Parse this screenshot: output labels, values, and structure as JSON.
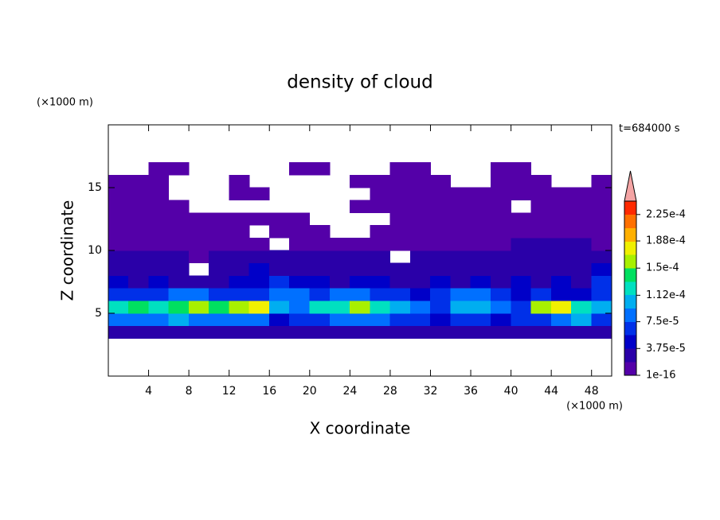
{
  "chart_data": {
    "type": "heatmap",
    "title": "density of cloud",
    "x_label": "X coordinate",
    "y_label": "Z coordinate",
    "x_unit": "(×1000 m)",
    "y_unit": "(×1000 m)",
    "annotation": "t=684000 s",
    "xlim": [
      0,
      50
    ],
    "ylim": [
      0,
      20
    ],
    "xticks": [
      4,
      8,
      12,
      16,
      20,
      24,
      28,
      32,
      36,
      40,
      44,
      48
    ],
    "yticks": [
      5,
      10,
      15
    ],
    "xbins": [
      0,
      2,
      4,
      6,
      8,
      10,
      12,
      14,
      16,
      18,
      20,
      22,
      24,
      26,
      28,
      30,
      32,
      34,
      36,
      38,
      40,
      42,
      44,
      46,
      48,
      50
    ],
    "zbins": [
      3,
      4,
      5,
      6,
      7,
      8,
      9,
      10,
      11,
      12,
      13,
      14,
      15,
      16,
      17
    ],
    "z": [
      [
        2e-05,
        3e-05,
        3e-05,
        3e-05,
        3e-05,
        3e-05,
        3e-05,
        3e-05,
        2e-05,
        2e-05,
        2e-05,
        2e-05,
        3e-05,
        3e-05,
        2e-05,
        2e-05,
        2e-05,
        3e-05,
        2e-05,
        2e-05,
        2e-05,
        3e-05,
        3e-05,
        3e-05,
        2e-05
      ],
      [
        8e-05,
        9e-05,
        9e-05,
        0.0001,
        9e-05,
        9e-05,
        8e-05,
        8e-05,
        5e-05,
        6e-05,
        7e-05,
        8e-05,
        9e-05,
        8e-05,
        7e-05,
        6e-05,
        5e-05,
        7e-05,
        6e-05,
        5e-05,
        6e-05,
        7e-05,
        9e-05,
        0.0001,
        6e-05
      ],
      [
        0.00013,
        0.00014,
        0.00013,
        0.00014,
        0.00015,
        0.00014,
        0.00016,
        0.00017,
        0.0001,
        9e-05,
        0.00012,
        0.00013,
        0.00015,
        0.00013,
        0.00011,
        8e-05,
        7e-05,
        0.00011,
        0.0001,
        9e-05,
        7e-05,
        0.00015,
        0.00018,
        0.00013,
        0.00011
      ],
      [
        6e-05,
        7e-05,
        7e-05,
        8e-05,
        8e-05,
        7e-05,
        6e-05,
        7e-05,
        8e-05,
        9e-05,
        7e-05,
        8e-05,
        9e-05,
        7e-05,
        6e-05,
        5e-05,
        6e-05,
        8e-05,
        9e-05,
        6e-05,
        5e-05,
        6e-05,
        5e-05,
        5e-05,
        7e-05
      ],
      [
        4e-05,
        3e-05,
        4e-05,
        3e-05,
        2e-05,
        3e-05,
        4e-05,
        5e-05,
        6e-05,
        5e-05,
        4e-05,
        3e-05,
        4e-05,
        4e-05,
        3e-05,
        2e-05,
        4e-05,
        3e-05,
        4e-05,
        3e-05,
        4e-05,
        3e-05,
        4e-05,
        3e-05,
        6e-05
      ],
      [
        3e-05,
        2e-05,
        3e-05,
        2e-05,
        null,
        2e-05,
        3e-05,
        4e-05,
        3e-05,
        2e-05,
        3e-05,
        2e-05,
        2e-05,
        2e-05,
        2e-05,
        2e-05,
        2e-05,
        3e-05,
        2e-05,
        2e-05,
        3e-05,
        2e-05,
        3e-05,
        2e-05,
        4e-05
      ],
      [
        2e-05,
        2e-05,
        2e-05,
        2e-05,
        1e-05,
        2e-05,
        2e-05,
        2e-05,
        2e-05,
        2e-05,
        2e-05,
        2e-05,
        2e-05,
        2e-05,
        null,
        2e-05,
        2e-05,
        2e-05,
        2e-05,
        2e-05,
        3e-05,
        3e-05,
        3e-05,
        3e-05,
        2e-05
      ],
      [
        1e-05,
        1e-05,
        1e-05,
        1e-05,
        1e-05,
        1e-05,
        1e-05,
        1e-05,
        null,
        1e-05,
        1e-05,
        1e-05,
        1e-05,
        1e-05,
        1e-05,
        1e-05,
        1e-05,
        1e-05,
        1e-05,
        1e-05,
        2e-05,
        2e-05,
        2e-05,
        2e-05,
        1e-05
      ],
      [
        1e-05,
        1e-05,
        1e-05,
        1e-05,
        1e-05,
        1e-05,
        1e-05,
        null,
        1e-05,
        1e-05,
        1e-05,
        null,
        null,
        1e-05,
        1e-05,
        1e-05,
        1e-05,
        1e-05,
        1e-05,
        1e-05,
        1e-05,
        1e-05,
        1e-05,
        1e-05,
        1e-05
      ],
      [
        1e-05,
        1e-05,
        1e-05,
        1e-05,
        1e-05,
        1e-05,
        1e-05,
        1e-05,
        1e-05,
        1e-05,
        null,
        null,
        null,
        null,
        1e-05,
        1e-05,
        1e-05,
        1e-05,
        1e-05,
        1e-05,
        1e-05,
        1e-05,
        1e-05,
        1e-05,
        1e-05
      ],
      [
        1e-05,
        1e-05,
        1e-05,
        1e-05,
        null,
        null,
        null,
        null,
        null,
        null,
        null,
        null,
        1e-05,
        1e-05,
        1e-05,
        1e-05,
        1e-05,
        1e-05,
        1e-05,
        1e-05,
        null,
        1e-05,
        1e-05,
        1e-05,
        1e-05
      ],
      [
        1e-05,
        1e-05,
        1e-05,
        null,
        null,
        null,
        1e-05,
        1e-05,
        null,
        null,
        null,
        null,
        null,
        1e-05,
        1e-05,
        1e-05,
        1e-05,
        1e-05,
        1e-05,
        1e-05,
        1e-05,
        1e-05,
        1e-05,
        1e-05,
        1e-05
      ],
      [
        1e-05,
        1e-05,
        1e-05,
        null,
        null,
        null,
        1e-05,
        null,
        null,
        null,
        null,
        null,
        1e-05,
        1e-05,
        1e-05,
        1e-05,
        1e-05,
        null,
        null,
        1e-05,
        1e-05,
        1e-05,
        null,
        null,
        1e-05
      ],
      [
        null,
        null,
        1e-05,
        1e-05,
        null,
        null,
        null,
        null,
        null,
        1e-05,
        1e-05,
        null,
        null,
        null,
        1e-05,
        1e-05,
        null,
        null,
        null,
        1e-05,
        1e-05,
        null,
        null,
        null,
        null
      ]
    ],
    "colorbar": {
      "levels": [
        1e-16,
        1.875e-05,
        3.75e-05,
        5.625e-05,
        7.5e-05,
        9.375e-05,
        0.0001125,
        0.00013125,
        0.00015,
        0.00016875,
        0.0001875,
        0.00020625,
        0.000225,
        0.00024375
      ],
      "colors": [
        "#5400a8",
        "#2a00a8",
        "#0000c8",
        "#0030e8",
        "#0070ff",
        "#00aef0",
        "#00e0c0",
        "#00e060",
        "#a8f000",
        "#f0f000",
        "#ffb000",
        "#ff7000",
        "#ff2a00"
      ],
      "extend_color": "#f4a4a4",
      "ticks": [
        1e-16,
        {
          "value": 3.75e-05,
          "label": "3.75e-5"
        },
        {
          "value": 7.5e-05,
          "label": "7.5e-5"
        },
        {
          "value": 0.000112,
          "label": "1.12e-4"
        },
        {
          "value": 0.00015,
          "label": "1.5e-4"
        },
        {
          "value": 0.000188,
          "label": "1.88e-4"
        },
        {
          "value": 0.000225,
          "label": "2.25e-4"
        }
      ]
    }
  }
}
